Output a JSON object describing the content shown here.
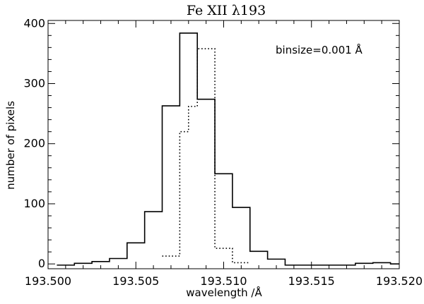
{
  "chart_data": {
    "type": "histogram",
    "title": "Fe XII λ193",
    "xlabel": "wavelength /Å",
    "ylabel": "number of pixels",
    "annotation": "binsize=0.001 Å",
    "xlim": [
      193.5,
      193.52
    ],
    "ylim": [
      -8,
      405
    ],
    "grid": false,
    "legend": "none",
    "x_ticks": [
      193.5,
      193.505,
      193.51,
      193.515,
      193.52
    ],
    "x_tick_labels": [
      "193.500",
      "193.505",
      "193.510",
      "193.515",
      "193.520"
    ],
    "y_ticks": [
      0,
      100,
      200,
      300,
      400
    ],
    "y_tick_labels": [
      "0",
      "100",
      "200",
      "300",
      "400"
    ],
    "binsize": 0.001,
    "series": [
      {
        "style": "solid",
        "bin_edges": [
          193.5005,
          193.5015,
          193.5025,
          193.5035,
          193.5045,
          193.5055,
          193.5065,
          193.5075,
          193.5085,
          193.5095,
          193.5105,
          193.5115,
          193.5125,
          193.5135,
          193.5145,
          193.5155,
          193.5165,
          193.5175,
          193.5185,
          193.5195,
          193.52
        ],
        "values": [
          -2,
          1,
          4,
          9,
          35,
          87,
          263,
          384,
          274,
          150,
          94,
          21,
          8,
          -2,
          -2,
          -2,
          -2,
          1,
          2,
          0
        ]
      },
      {
        "style": "dotted",
        "bin_edges": [
          193.5065,
          193.5075,
          193.508,
          193.5085,
          193.5095,
          193.5105,
          193.5115
        ],
        "values": [
          13,
          220,
          262,
          358,
          26,
          2
        ]
      }
    ]
  }
}
